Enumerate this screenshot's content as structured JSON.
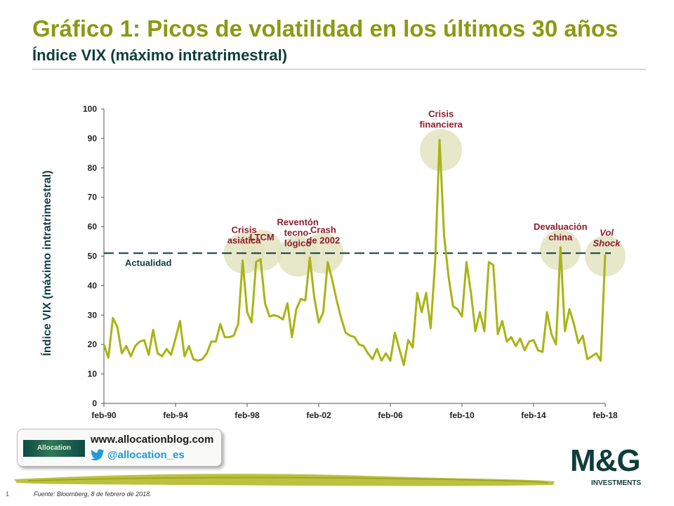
{
  "title": "Gráfico 1: Picos de volatilidad en los últimos 30 años",
  "subtitle": "Índice VIX (máximo intratrimestral)",
  "colors": {
    "title": "#8a9a12",
    "dark_teal": "#0f3d3a",
    "series": "#a8b414",
    "annotation_text": "#8b1d2c",
    "bubble": "#e3e3c0"
  },
  "chart_data": {
    "type": "line",
    "title": "Índice VIX (máximo intratrimestral)",
    "ylabel": "Índice VIX (máximo intratrimestral)",
    "xlabel": "",
    "ylim": [
      0,
      100
    ],
    "yticks": [
      "0",
      "10",
      "20",
      "30",
      "40",
      "50",
      "60",
      "70",
      "80",
      "90",
      "100"
    ],
    "xticks": [
      "feb-90",
      "feb-94",
      "feb-98",
      "feb-02",
      "feb-06",
      "feb-10",
      "feb-14",
      "feb-18"
    ],
    "x_start_year": 1990.0,
    "x_end_year": 2018.0,
    "quarter_step": 0.25,
    "series": [
      {
        "name": "VIX máximo intratrimestral",
        "values": [
          20.0,
          15.5,
          29.0,
          26.0,
          17.0,
          19.5,
          16.0,
          19.5,
          21.0,
          21.5,
          16.5,
          25.0,
          17.0,
          16.0,
          18.5,
          16.5,
          22.0,
          28.0,
          16.0,
          19.5,
          15.0,
          14.5,
          15.0,
          17.0,
          21.0,
          21.0,
          27.0,
          22.5,
          22.5,
          23.0,
          27.0,
          48.5,
          31.0,
          27.5,
          48.0,
          49.0,
          34.0,
          29.5,
          30.0,
          29.5,
          28.5,
          34.0,
          22.5,
          32.0,
          35.5,
          35.0,
          49.5,
          36.0,
          27.5,
          31.0,
          48.0,
          42.0,
          35.0,
          29.0,
          24.0,
          23.0,
          22.5,
          20.0,
          19.5,
          17.0,
          15.0,
          18.5,
          14.5,
          17.0,
          14.5,
          24.0,
          18.5,
          13.0,
          21.5,
          19.0,
          37.5,
          31.0,
          37.5,
          25.5,
          48.0,
          89.5,
          57.0,
          43.0,
          33.0,
          32.0,
          29.5,
          48.0,
          37.5,
          24.5,
          31.0,
          24.5,
          48.0,
          47.0,
          23.5,
          28.0,
          21.0,
          22.5,
          19.5,
          22.0,
          18.0,
          21.0,
          21.5,
          18.0,
          17.5,
          31.0,
          23.5,
          20.0,
          53.0,
          24.5,
          32.0,
          27.0,
          20.5,
          23.0,
          15.0,
          16.0,
          17.0,
          14.5,
          50.5
        ]
      }
    ],
    "reference_line": {
      "label": "Actualidad",
      "value": 51
    },
    "annotations": [
      {
        "lines": [
          "Crisis",
          "asiática"
        ],
        "year": 1997.83,
        "bubble_value": 51
      },
      {
        "lines": [
          "LTCM"
        ],
        "year": 1998.83,
        "bubble_value": 52
      },
      {
        "lines": [
          "Reventón",
          "tecno-",
          "lógico"
        ],
        "year": 2000.83,
        "bubble_value": 50
      },
      {
        "lines": [
          "Crash",
          "de 2002"
        ],
        "year": 2002.25,
        "bubble_value": 51
      },
      {
        "lines": [
          "Crisis",
          "financiera"
        ],
        "year": 2008.83,
        "bubble_value": 86
      },
      {
        "lines": [
          "Devaluación",
          "china"
        ],
        "year": 2015.5,
        "bubble_value": 52
      },
      {
        "lines": [
          "Vol",
          "Shock"
        ],
        "year": 2018.0,
        "bubble_value": 50,
        "italic": true
      }
    ]
  },
  "blog": {
    "logo_text": "Allocation",
    "url": "www.allocationblog.com",
    "twitter": "@allocation_es"
  },
  "brand": {
    "name": "M&G",
    "sub": "INVESTMENTS"
  },
  "footer": {
    "page_number": "1",
    "source": "Fuente: Bloomberg, 8 de febrero de 2018."
  }
}
